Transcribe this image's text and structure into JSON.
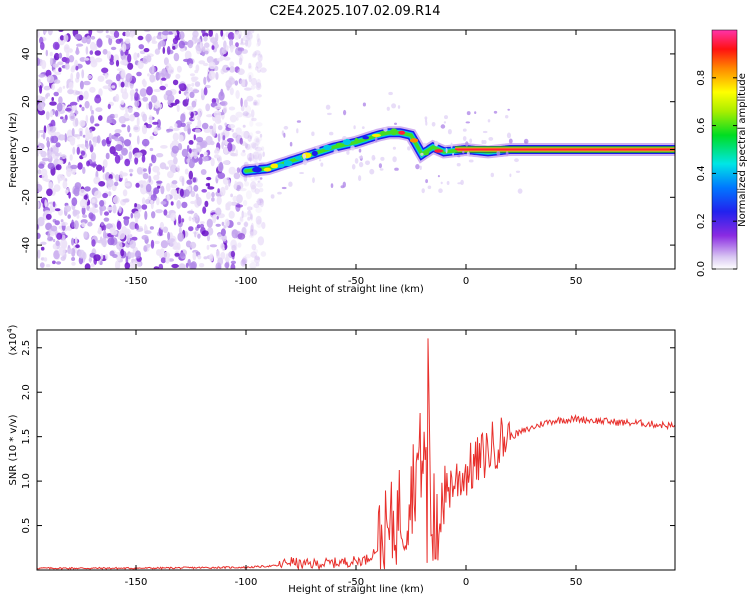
{
  "chart_data": [
    {
      "type": "heatmap",
      "title": "C2E4.2025.107.02.09.R14",
      "xlabel": "Height of straight line (km)",
      "ylabel": "Frequency (Hz)",
      "xlim": [
        -195,
        95
      ],
      "ylim": [
        -50,
        50
      ],
      "x_ticks": [
        "-150",
        "-100",
        "-50",
        "0",
        "50"
      ],
      "y_ticks": [
        "-40",
        "-20",
        "0",
        "20",
        "40"
      ],
      "grid": false,
      "colorbar": {
        "label": "Normalized spectral amplitude",
        "range": [
          0,
          1
        ],
        "ticks": [
          "0.0",
          "0.2",
          "0.4",
          "0.6",
          "0.8"
        ],
        "colormap": "purple-blue-cyan-green-yellow-orange-red-magenta"
      },
      "signal_track": {
        "description_points_x": [
          -100,
          -90,
          -80,
          -70,
          -60,
          -50,
          -40,
          -35,
          -30,
          -25,
          -20,
          -15,
          -10,
          0,
          10,
          20,
          40,
          60,
          95
        ],
        "frequency_hz": [
          -9,
          -8,
          -5,
          -2,
          1,
          3,
          6,
          7,
          7,
          6,
          -2,
          1,
          -1,
          0,
          -1,
          0,
          0,
          0,
          0
        ],
        "strong_from_x": -5,
        "noise_region_x": [
          -195,
          -92
        ]
      }
    },
    {
      "type": "line",
      "xlabel": "Height of straight line (km)",
      "ylabel": "SNR (10 * v/v)",
      "y_multiplier": "(x10",
      "y_multiplier_exp": "4",
      "y_multiplier_close": ")",
      "xlim": [
        -195,
        95
      ],
      "ylim": [
        0,
        2.7
      ],
      "x_ticks": [
        "-150",
        "-100",
        "-50",
        "0",
        "50"
      ],
      "y_ticks": [
        "0.5",
        "1.0",
        "1.5",
        "2.0",
        "2.5"
      ],
      "grid": false,
      "series": [
        {
          "color": "#e8302c",
          "x": [
            -195,
            -150,
            -100,
            -85,
            -80,
            -75,
            -60,
            -50,
            -45,
            -40,
            -35,
            -32,
            -30,
            -28,
            -25,
            -22,
            -20,
            -18,
            -17,
            -16,
            -15,
            -13,
            -10,
            -5,
            0,
            5,
            10,
            15,
            20,
            25,
            30,
            35,
            40,
            50,
            60,
            70,
            80,
            90,
            95
          ],
          "y": [
            0.02,
            0.02,
            0.03,
            0.05,
            0.1,
            0.06,
            0.08,
            0.1,
            0.12,
            0.25,
            0.4,
            0.55,
            0.7,
            0.6,
            0.9,
            1.2,
            1.3,
            1.1,
            2.4,
            0.8,
            0.6,
            0.7,
            0.9,
            1.0,
            1.1,
            1.2,
            1.35,
            1.45,
            1.5,
            1.55,
            1.6,
            1.65,
            1.68,
            1.7,
            1.68,
            1.66,
            1.65,
            1.63,
            1.62
          ]
        }
      ]
    }
  ]
}
